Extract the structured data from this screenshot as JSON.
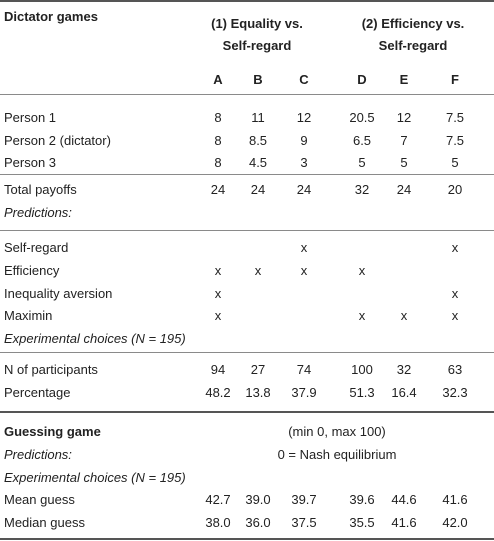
{
  "dictator": {
    "title": "Dictator games",
    "group1": {
      "line1": "(1) Equality vs.",
      "line2": "Self-regard"
    },
    "group2": {
      "line1": "(2) Efficiency vs.",
      "line2": "Self-regard"
    },
    "columns": [
      "A",
      "B",
      "C",
      "D",
      "E",
      "F"
    ],
    "persons": [
      {
        "label": "Person 1",
        "values": [
          "8",
          "11",
          "12",
          "20.5",
          "12",
          "7.5"
        ]
      },
      {
        "label": "Person 2 (dictator)",
        "values": [
          "8",
          "8.5",
          "9",
          "6.5",
          "7",
          "7.5"
        ]
      },
      {
        "label": "Person 3",
        "values": [
          "8",
          "4.5",
          "3",
          "5",
          "5",
          "5"
        ]
      }
    ],
    "total": {
      "label": "Total payoffs",
      "values": [
        "24",
        "24",
        "24",
        "32",
        "24",
        "20"
      ]
    },
    "predictions_label": "Predictions:",
    "predictions": [
      {
        "label": "Self-regard",
        "values": [
          "",
          "",
          "x",
          "",
          "",
          "x"
        ]
      },
      {
        "label": "Efficiency",
        "values": [
          "x",
          "x",
          "x",
          "x",
          "",
          ""
        ]
      },
      {
        "label": "Inequality aversion",
        "values": [
          "x",
          "",
          "",
          "",
          "",
          "x"
        ]
      },
      {
        "label": "Maximin",
        "values": [
          "x",
          "",
          "",
          "x",
          "x",
          "x"
        ]
      }
    ],
    "experimental_label": "Experimental choices (N = 195)",
    "participants": {
      "label": "N of participants",
      "values": [
        "94",
        "27",
        "74",
        "100",
        "32",
        "63"
      ]
    },
    "percentage": {
      "label": "Percentage",
      "values": [
        "48.2",
        "13.8",
        "37.9",
        "51.3",
        "16.4",
        "32.3"
      ]
    }
  },
  "guessing": {
    "title": "Guessing game",
    "range_note": "(min 0, max 100)",
    "predictions_label": "Predictions:",
    "prediction_value": "0 = Nash equilibrium",
    "experimental_label": "Experimental choices (N = 195)",
    "mean": {
      "label": "Mean guess",
      "values": [
        "42.7",
        "39.0",
        "39.7",
        "39.6",
        "44.6",
        "41.6"
      ]
    },
    "median": {
      "label": "Median guess",
      "values": [
        "38.0",
        "36.0",
        "37.5",
        "35.5",
        "41.6",
        "42.0"
      ]
    }
  }
}
